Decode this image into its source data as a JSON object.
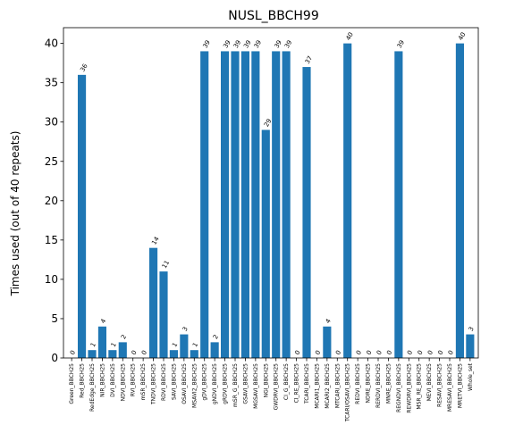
{
  "chart_data": {
    "type": "bar",
    "title": "NUSL_BBCH99",
    "xlabel": "",
    "ylabel": "Times used (out of 40 repeats)",
    "ylim": [
      0,
      42
    ],
    "yticks": [
      0,
      5,
      10,
      15,
      20,
      25,
      30,
      35,
      40
    ],
    "grid": false,
    "bar_color": "#1f77b4",
    "categories": [
      "Green_BBCH25",
      "Red_BBCH25",
      "RedEdge_BBCH25",
      "NIR_BBCH25",
      "DVI_BBCH25",
      "NDVI_BBCH25",
      "RVI_BBCH25",
      "mSR_BBCH25",
      "TNDVI_BBCH25",
      "RDVI_BBCH25",
      "SAVI_BBCH25",
      "OSAVI_BBCH25",
      "MSAVI2_BBCH25",
      "gDVI_BBCH25",
      "gNDVI_BBCH25",
      "gRDVI_BBCH25",
      "mSR_G_BBCH25",
      "GSAVI_BBCH25",
      "MGSAVI_BBCH25",
      "NGI_BBCH25",
      "GWDRVI_BBCH25",
      "CI_G_BBCH25",
      "CI_RE_BBCH25",
      "TCARI_BBCH25",
      "MCARI1_BBCH25",
      "MCARI2_BBCH25",
      "MTCARI_BBCH25",
      "TCARI/OSAVI_BBCH25",
      "REDVI_BBCH25",
      "NDRE_BBCH25",
      "RERDVI_BBCH25",
      "MNRE_BBCH25",
      "REGNDVI_BBCH25",
      "REWDRVI_BBCH25",
      "MSR_RE_BBCH25",
      "MEVI_BBCH25",
      "RESAVI_BBCH25",
      "MRESAVI_BBCH25",
      "MRETVI_BBCH25",
      "Whole_set"
    ],
    "values": [
      0,
      36,
      1,
      4,
      1,
      2,
      0,
      0,
      14,
      11,
      1,
      3,
      1,
      39,
      2,
      39,
      39,
      39,
      39,
      29,
      39,
      39,
      0,
      37,
      0,
      4,
      0,
      40,
      0,
      0,
      0,
      0,
      39,
      0,
      0,
      0,
      0,
      0,
      40,
      3
    ]
  }
}
